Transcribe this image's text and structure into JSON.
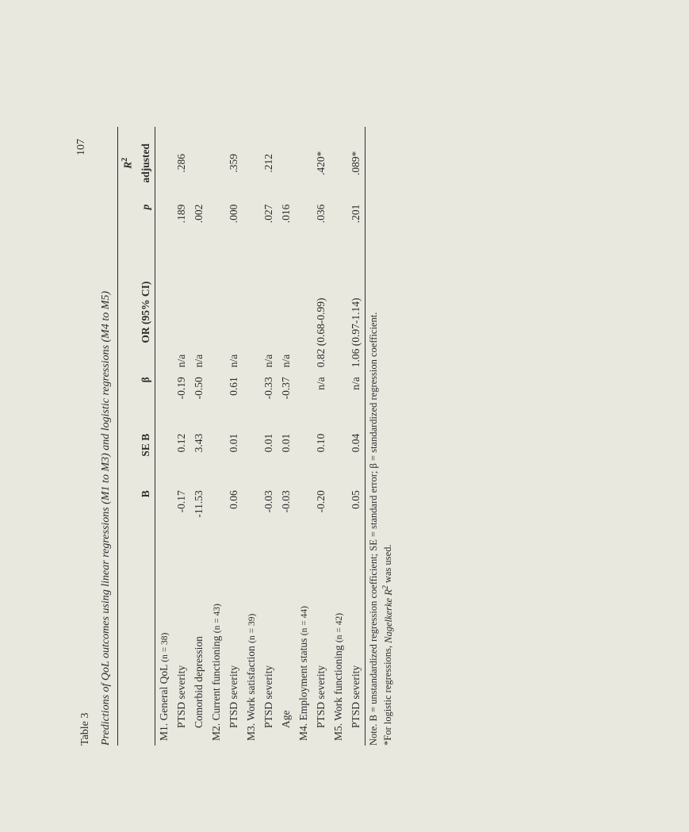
{
  "page_number": "107",
  "table_label": "Table 3",
  "table_title_html": "Predictions of QoL outcomes using linear regressions (M1 to M3) and logistic regressions (M4 to M5)",
  "headers": {
    "label": "",
    "B": "B",
    "SEB": "SE B",
    "beta": "β",
    "OR": "OR (95% CI)",
    "p": "p",
    "R2_top": "R",
    "R2_bottom": "adjusted"
  },
  "sections": [
    {
      "label": "M1. General QoL",
      "n": "(n = 38)",
      "rows": [
        {
          "label": "PTSD severity",
          "B": "-0.17",
          "SEB": "0.12",
          "beta": "-0.19",
          "OR": "n/a",
          "p": ".189",
          "R2": ".286"
        },
        {
          "label": "Comorbid depression",
          "B": "-11.53",
          "SEB": "3.43",
          "beta": "-0.50",
          "OR": "n/a",
          "p": ".002",
          "R2": ""
        }
      ]
    },
    {
      "label": "M2. Current functioning",
      "n": "(n = 43)",
      "rows": [
        {
          "label": "PTSD severity",
          "B": "0.06",
          "SEB": "0.01",
          "beta": "0.61",
          "OR": "n/a",
          "p": ".000",
          "R2": ".359"
        }
      ]
    },
    {
      "label": "M3. Work satisfaction",
      "n": "(n = 39)",
      "rows": [
        {
          "label": "PTSD severity",
          "B": "-0.03",
          "SEB": "0.01",
          "beta": "-0.33",
          "OR": "n/a",
          "p": ".027",
          "R2": ".212"
        },
        {
          "label": "Age",
          "B": "-0.03",
          "SEB": "0.01",
          "beta": "-0.37",
          "OR": "n/a",
          "p": ".016",
          "R2": ""
        }
      ]
    },
    {
      "label": "M4. Employment status",
      "n": "(n = 44)",
      "rows": [
        {
          "label": "PTSD severity",
          "B": "-0.20",
          "SEB": "0.10",
          "beta": "n/a",
          "OR": "0.82 (0.68-0.99)",
          "p": ".036",
          "R2": ".420*"
        }
      ]
    },
    {
      "label": "M5. Work functioning",
      "n": "(n = 42)",
      "rows": [
        {
          "label": "PTSD severity",
          "B": "0.05",
          "SEB": "0.04",
          "beta": "n/a",
          "OR": "1.06 (0.97-1.14)",
          "p": ".201",
          "R2": ".089*"
        }
      ]
    }
  ],
  "footnotes": {
    "line1_pre": "Note. B = unstandardized regression coefficient; SE = standard error; ",
    "line1_beta": "β",
    "line1_post": " = standardized regression coefficient.",
    "line2_pre": "*For logistic regressions, ",
    "line2_ital_pre": "Nagelkerke R",
    "line2_post": " was used."
  }
}
